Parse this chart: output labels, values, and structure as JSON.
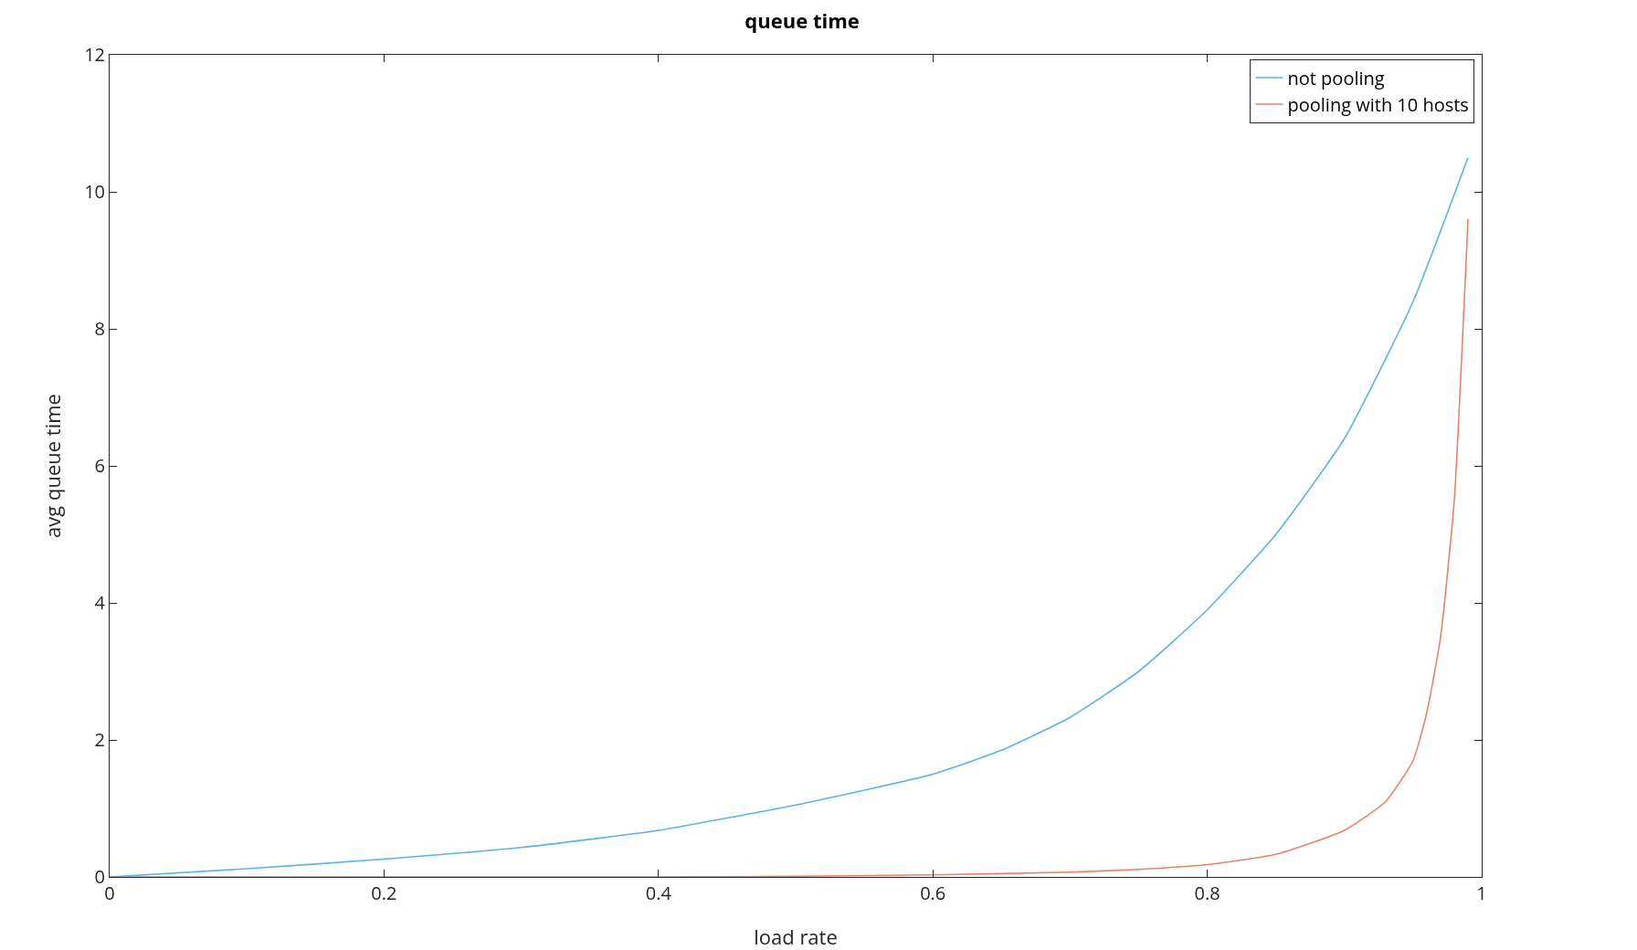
{
  "chart_data": {
    "type": "line",
    "title": "queue time",
    "xlabel": "load rate",
    "ylabel": "avg queue time",
    "xlim": [
      0,
      1
    ],
    "xticks": [
      0,
      0.2,
      0.4,
      0.6,
      0.8,
      1
    ],
    "ylim": [
      0,
      12
    ],
    "yticks": [
      0,
      2,
      4,
      6,
      8,
      10,
      12
    ],
    "grid": false,
    "legend": "top right",
    "line_style": "solid",
    "marker": "none",
    "series": [
      {
        "name": "not pooling",
        "color": "#5ab4e5",
        "x": [
          0,
          0.1,
          0.2,
          0.3,
          0.4,
          0.5,
          0.6,
          0.65,
          0.7,
          0.75,
          0.8,
          0.85,
          0.9,
          0.95,
          0.99
        ],
        "values": [
          0,
          0.12,
          0.26,
          0.43,
          0.68,
          1.05,
          1.5,
          1.85,
          2.33,
          3.0,
          3.9,
          5.0,
          6.4,
          8.4,
          10.5
        ]
      },
      {
        "name": "pooling with 10 hosts",
        "color": "#e9826a",
        "x": [
          0,
          0.2,
          0.4,
          0.5,
          0.6,
          0.7,
          0.75,
          0.8,
          0.85,
          0.9,
          0.93,
          0.95,
          0.96,
          0.97,
          0.98,
          0.99
        ],
        "values": [
          0,
          0,
          0,
          0.01,
          0.03,
          0.07,
          0.11,
          0.18,
          0.33,
          0.68,
          1.1,
          1.7,
          2.4,
          3.5,
          5.5,
          9.6
        ]
      }
    ]
  }
}
